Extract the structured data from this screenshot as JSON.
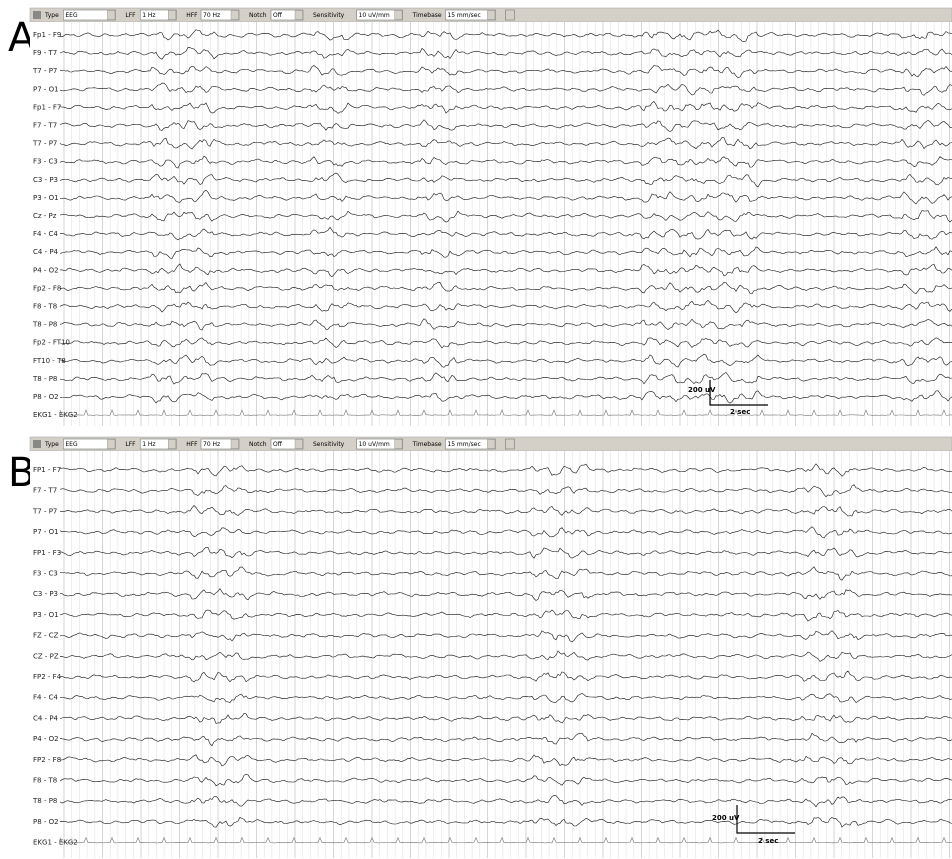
{
  "panels": [
    {
      "label": "A",
      "toolbar": [
        {
          "label": "Type",
          "value": "EEG"
        },
        {
          "label": "LFF",
          "value": "1 Hz"
        },
        {
          "label": "HFF",
          "value": "70 Hz"
        },
        {
          "label": "Notch",
          "value": "Off"
        },
        {
          "label": "Sensitivity",
          "value": "10 uV/mm"
        },
        {
          "label": "Timebase",
          "value": "15 mm/sec"
        }
      ],
      "channels": [
        "Fp1 - F9",
        "F9 - T7",
        "T7 - P7",
        "P7 - O1",
        "Fp1 - F7",
        "F7 - T7",
        "T7 - P7",
        "F3 - C3",
        "C3 - P3",
        "P3 - O1",
        "Cz - Pz",
        "F4 - C4",
        "C4 - P4",
        "P4 - O2",
        "Fp2 - F8",
        "F8 - T8",
        "T8 - P8",
        "Fp2 - FT10",
        "FT10 - T8",
        "T8 - P8",
        "P8 - O2",
        "EKG1 - EKG2"
      ],
      "scale": {
        "amplitude": "200 uV",
        "time": "2 sec"
      }
    },
    {
      "label": "B",
      "toolbar": [
        {
          "label": "Type",
          "value": "EEG"
        },
        {
          "label": "LFF",
          "value": "1 Hz"
        },
        {
          "label": "HFF",
          "value": "70 Hz"
        },
        {
          "label": "Notch",
          "value": "Off"
        },
        {
          "label": "Sensitivity",
          "value": "10 uV/mm"
        },
        {
          "label": "Timebase",
          "value": "15 mm/sec"
        }
      ],
      "channels": [
        "FP1 - F7",
        "F7 - T7",
        "T7 - P7",
        "P7 - O1",
        "FP1 - F3",
        "F3 - C3",
        "C3 - P3",
        "P3 - O1",
        "FZ - CZ",
        "CZ - PZ",
        "FP2 - F4",
        "F4 - C4",
        "C4 - P4",
        "P4 - O2",
        "FP2 - F8",
        "F8 - T8",
        "T8 - P8",
        "P8 - O2",
        "EKG1 - EKG2"
      ],
      "scale": {
        "amplitude": "200 uV",
        "time": "2 sec"
      }
    }
  ]
}
